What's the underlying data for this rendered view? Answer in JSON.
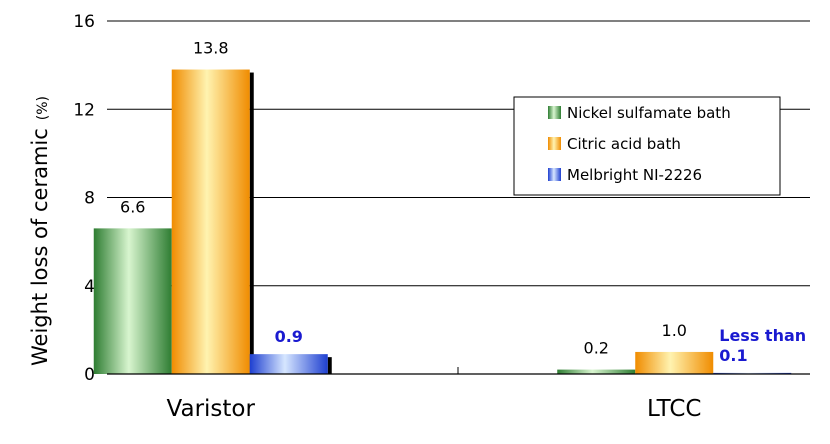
{
  "chart_data": {
    "type": "bar",
    "categories": [
      "Varistor",
      "LTCC"
    ],
    "series": [
      {
        "name": "Nickel sulfamate bath",
        "values": [
          6.6,
          0.2
        ],
        "labels": [
          "6.6",
          "0.2"
        ],
        "color": "#2e7d32"
      },
      {
        "name": "Citric acid bath",
        "values": [
          13.8,
          1.0
        ],
        "labels": [
          "13.8",
          "1.0"
        ],
        "color": "#f5a623"
      },
      {
        "name": "Melbright NI-2226",
        "values": [
          0.9,
          0.05
        ],
        "labels": [
          "0.9",
          ""
        ],
        "color": "#2a4fe0"
      }
    ],
    "annotations": [
      {
        "series": 2,
        "category": 1,
        "lines": [
          "Less than",
          "0.1"
        ]
      }
    ],
    "title": "",
    "xlabel": "",
    "ylabel": "Weight loss of ceramic",
    "ylabel_unit": "(%)",
    "ylim": [
      0,
      16
    ],
    "yticks": [
      0,
      4,
      8,
      12,
      16
    ],
    "grid": true,
    "legend": "top-right"
  }
}
